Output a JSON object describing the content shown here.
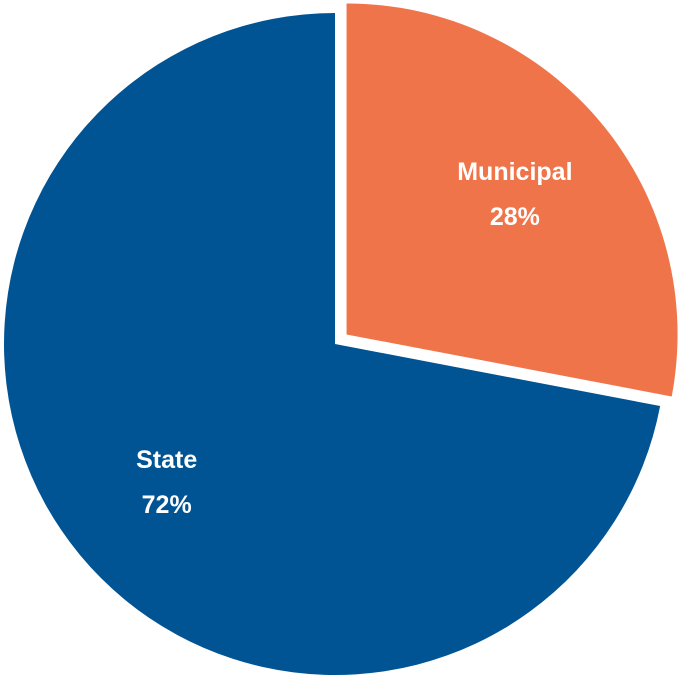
{
  "chart_data": {
    "type": "pie",
    "categories": [
      "Municipal",
      "State"
    ],
    "values": [
      28,
      72
    ],
    "value_labels": [
      "28%",
      "72%"
    ],
    "colors": [
      "#f0744a",
      "#005493"
    ],
    "explode": [
      true,
      false
    ]
  }
}
